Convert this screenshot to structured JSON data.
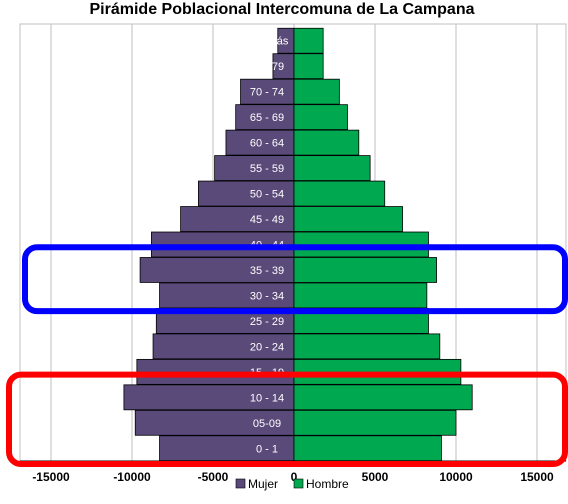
{
  "chart_data": {
    "type": "bar",
    "orientation": "horizontal",
    "title": "Pirámide Poblacional Intercomuna de La Campana",
    "categories": [
      "80 - más",
      "75 - 79",
      "70 - 74",
      "65 - 69",
      "60 - 64",
      "55 - 59",
      "50 - 54",
      "45 - 49",
      "40 - 44",
      "35 - 39",
      "30 - 34",
      "25 - 29",
      "20 - 24",
      "15 - 19",
      "10 - 14",
      "05-09",
      "0 - 1"
    ],
    "series": [
      {
        "name": "Mujer",
        "color": "#5a4a7a",
        "values": [
          -1000,
          -1300,
          -3300,
          -3600,
          -4200,
          -4900,
          -5900,
          -7000,
          -8800,
          -9500,
          -8300,
          -8500,
          -8700,
          -9700,
          -10500,
          -9800,
          -8300
        ]
      },
      {
        "name": "Hombre",
        "color": "#00a84f",
        "values": [
          1800,
          1800,
          2800,
          3300,
          4000,
          4700,
          5600,
          6700,
          8300,
          8800,
          8200,
          8300,
          9000,
          10300,
          11000,
          10000,
          9100
        ]
      }
    ],
    "x_ticks": [
      -15000,
      -10000,
      -5000,
      0,
      5000,
      10000,
      15000
    ],
    "x_tick_labels": [
      "-15000",
      "-10000",
      "-5000",
      "0",
      "5000",
      "10000",
      "15000"
    ],
    "xlim": [
      -17000,
      17000
    ],
    "grid": "vertical",
    "legend": "bottom-center",
    "highlights": [
      {
        "categories": [
          "35 - 39",
          "30 - 34"
        ],
        "color": "#0000ff"
      },
      {
        "categories": [
          "10 - 14",
          "05-09",
          "0 - 1"
        ],
        "color": "#ff0000"
      }
    ]
  }
}
